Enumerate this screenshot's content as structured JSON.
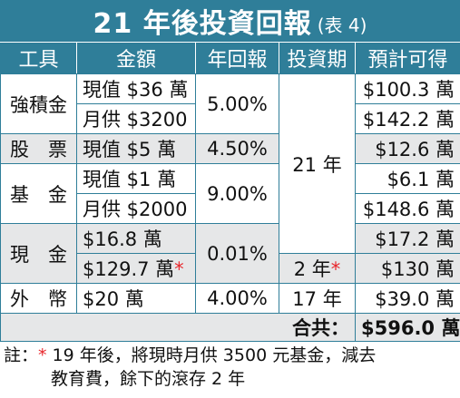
{
  "title": {
    "main": "21 年後投資回報",
    "sub": "(表 4)"
  },
  "headers": [
    "工具",
    "金額",
    "年回報",
    "投資期",
    "預計可得"
  ],
  "rows": {
    "r1": {
      "tool": "強積金",
      "amount": "現值 $36 萬",
      "return": "5.00%",
      "period": "21 年",
      "result": "$100.3 萬"
    },
    "r2": {
      "amount": "月供 $3200",
      "result": "$142.2 萬"
    },
    "r3": {
      "tool": "股　票",
      "amount": "現值 $5 萬",
      "return": "4.50%",
      "result": "$12.6 萬"
    },
    "r4": {
      "tool": "基　金",
      "amount": "現值 $1 萬",
      "return": "9.00%",
      "result": "$6.1 萬"
    },
    "r5": {
      "amount": "月供 $2000",
      "result": "$148.6 萬"
    },
    "r6": {
      "tool": "現　金",
      "amount": "$16.8 萬",
      "return": "0.01%",
      "result": "$17.2 萬"
    },
    "r7": {
      "amount": "$129.7 萬",
      "amount_mark": "*",
      "period": "2 年",
      "period_mark": "*",
      "result": "$130 萬"
    },
    "r8": {
      "tool": "外　幣",
      "amount": "$20 萬",
      "return": "4.00%",
      "period": "17 年",
      "result": "$39.0 萬"
    }
  },
  "total": {
    "label": "合共：",
    "value": "$596.0 萬"
  },
  "note": {
    "label": "註：",
    "mark": "*",
    "line1": " 19 年後，將現時月供 3500 元基金，減去",
    "line2": "教育費，餘下的滾存 2 年"
  },
  "colors": {
    "header_bg": "#2f7e99",
    "shade": "#e6e7e8",
    "asterisk": "#e8262b"
  }
}
